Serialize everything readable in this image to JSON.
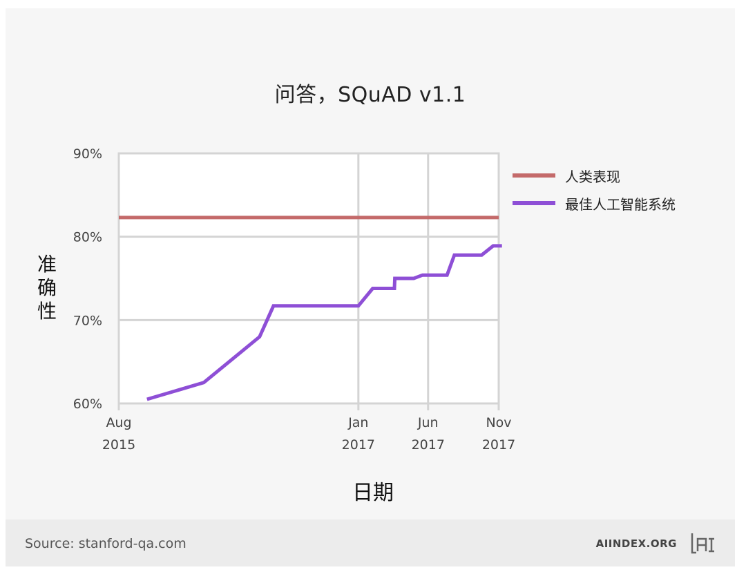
{
  "chart_data": {
    "type": "line",
    "title": "问答，SQuAD v1.1",
    "xlabel": "日期",
    "ylabel": "准确性",
    "x_ticks": [
      {
        "month": "Aug",
        "year": "2015",
        "date": "2015-08"
      },
      {
        "month": "Jan",
        "year": "2017",
        "date": "2017-01"
      },
      {
        "month": "Jun",
        "year": "2017",
        "date": "2017-06"
      },
      {
        "month": "Nov",
        "year": "2017",
        "date": "2017-11"
      }
    ],
    "y_ticks": [
      "60%",
      "70%",
      "80%",
      "90%"
    ],
    "ylim": [
      60,
      90
    ],
    "grid": true,
    "legend_position": "right",
    "series": [
      {
        "name": "人类表现",
        "color": "#c46a6a",
        "points": [
          [
            "2015-08-01",
            82.3
          ],
          [
            "2017-11-01",
            82.3
          ]
        ]
      },
      {
        "name": "最佳人工智能系统",
        "color": "#8e4fd6",
        "points": [
          [
            "2015-10-01",
            60.5
          ],
          [
            "2016-02-01",
            62.5
          ],
          [
            "2016-06-01",
            68.0
          ],
          [
            "2016-07-01",
            71.7
          ],
          [
            "2017-01-01",
            71.7
          ],
          [
            "2017-02-01",
            73.8
          ],
          [
            "2017-03-20",
            73.8
          ],
          [
            "2017-03-21",
            75.0
          ],
          [
            "2017-05-01",
            75.0
          ],
          [
            "2017-05-20",
            75.4
          ],
          [
            "2017-07-12",
            75.4
          ],
          [
            "2017-07-28",
            77.8
          ],
          [
            "2017-09-25",
            77.8
          ],
          [
            "2017-10-20",
            78.9
          ],
          [
            "2017-11-08",
            78.9
          ]
        ]
      }
    ]
  },
  "footer": {
    "source": "Source: stanford-qa.com",
    "brand": "AIINDEX.ORG"
  }
}
